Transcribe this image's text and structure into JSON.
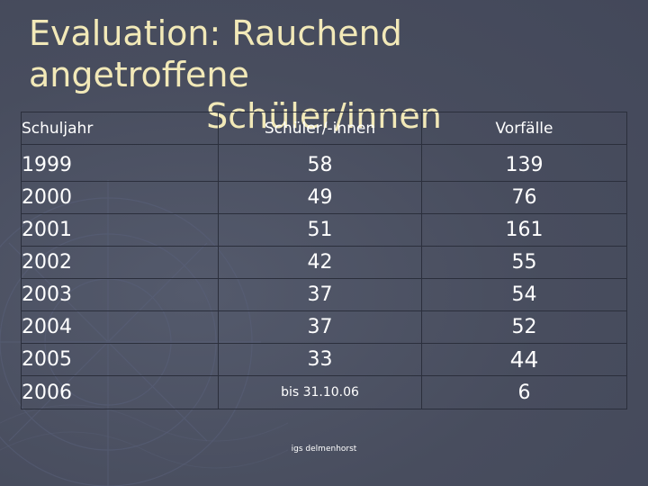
{
  "slide": {
    "title_line1": "Evaluation: Rauchend angetroffene",
    "title_line2": "Schüler/innen",
    "footer": "igs delmenhorst"
  },
  "table": {
    "headers": [
      "Schuljahr",
      "Schüler/-innen",
      "Vorfälle"
    ],
    "rows": [
      {
        "year": "1999",
        "students": "58",
        "incidents": "139"
      },
      {
        "year": "2000",
        "students": "49",
        "incidents": "76"
      },
      {
        "year": "2001",
        "students": "51",
        "incidents": "161"
      },
      {
        "year": "2002",
        "students": "42",
        "incidents": "55"
      },
      {
        "year": "2003",
        "students": "37",
        "incidents": "54"
      },
      {
        "year": "2004",
        "students": "37",
        "incidents": "52"
      },
      {
        "year": "2005",
        "students": "33",
        "incidents": "44"
      },
      {
        "year": "2006",
        "students": "bis 31.10.06",
        "incidents": "6"
      }
    ]
  }
}
